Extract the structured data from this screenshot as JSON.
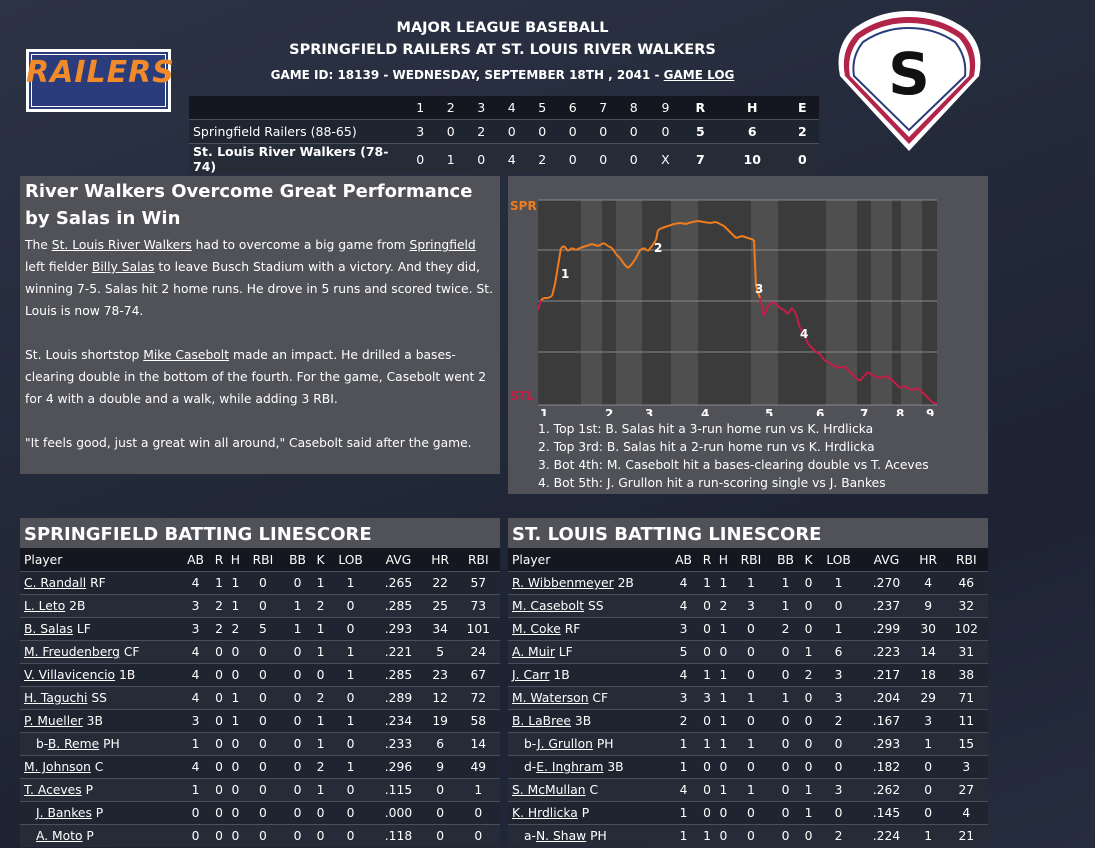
{
  "header": {
    "league": "MAJOR LEAGUE BASEBALL",
    "matchup": "SPRINGFIELD RAILERS AT ST. LOUIS RIVER WALKERS",
    "game_info": "GAME ID: 18139 - WEDNESDAY, SEPTEMBER 18TH , 2041 - ",
    "game_log_link": "GAME LOG"
  },
  "logos": {
    "away_text": "RAILERS",
    "home_text": "S",
    "away_color": "#f08a2a",
    "home_color": "#b3244a"
  },
  "linescore": {
    "headers": [
      "",
      "1",
      "2",
      "3",
      "4",
      "5",
      "6",
      "7",
      "8",
      "9",
      "R",
      "H",
      "E"
    ],
    "rows": [
      {
        "team": "Springfield Railers (88-65)",
        "innings": [
          "3",
          "0",
          "2",
          "0",
          "0",
          "0",
          "0",
          "0",
          "0"
        ],
        "R": "5",
        "H": "6",
        "E": "2"
      },
      {
        "team": "St. Louis River Walkers (78-74)",
        "innings": [
          "0",
          "1",
          "0",
          "4",
          "2",
          "0",
          "0",
          "0",
          "X"
        ],
        "R": "7",
        "H": "10",
        "E": "0"
      }
    ]
  },
  "story": {
    "title": "River Walkers Overcome Great Performance by Salas in Win",
    "p1": {
      "a": "The ",
      "l1": "St. Louis River Walkers",
      "b": " had to overcome a big game from ",
      "l2": "Springfield",
      "c": " left fielder ",
      "l3": "Billy Salas",
      "d": " to leave Busch Stadium with a victory. And they did, winning 7-5. Salas hit 2 home runs. He drove in 5 runs and scored twice. St. Louis is now 78-74."
    },
    "p2": {
      "a": "St. Louis shortstop ",
      "l1": "Mike Casebolt",
      "b": " made an impact. He drilled a bases-clearing double in the bottom of the fourth. For the game, Casebolt went 2 for 4 with a double and a walk, while adding 3 RBI."
    },
    "p3": "\"It feels good, just a great win all around,\" Casebolt said after the game."
  },
  "win_prob": {
    "top_label": "SPR",
    "bottom_label": "STL",
    "innings": [
      "1",
      "2",
      "3",
      "4",
      "5",
      "6",
      "7",
      "8",
      "9"
    ],
    "markers": [
      "1",
      "2",
      "3",
      "4"
    ],
    "notes": [
      "1. Top 1st: B. Salas hit a 3-run home run vs K. Hrdlicka",
      "2. Top 3rd: B. Salas hit a 2-run home run vs K. Hrdlicka",
      "3. Bot 4th: M. Casebolt hit a bases-clearing double vs T. Aceves",
      "4. Bot 5th: J. Grullon hit a run-scoring single vs J. Bankes"
    ],
    "colors": {
      "spr": "#f07c1c",
      "stl": "#c21e48"
    }
  },
  "batting": {
    "headers": [
      "Player",
      "AB",
      "R",
      "H",
      "RBI",
      "BB",
      "K",
      "LOB",
      "AVG",
      "HR",
      "RBI"
    ],
    "spr": {
      "title": "SPRINGFIELD BATTING LINESCORE",
      "rows": [
        {
          "pre": "",
          "name": "C. Randall",
          "pos": " RF",
          "s": [
            "4",
            "1",
            "1",
            "0",
            "0",
            "1",
            "1",
            ".265",
            "22",
            "57"
          ]
        },
        {
          "pre": "",
          "name": "L. Leto",
          "pos": " 2B",
          "s": [
            "3",
            "2",
            "1",
            "0",
            "1",
            "2",
            "0",
            ".285",
            "25",
            "73"
          ]
        },
        {
          "pre": "",
          "name": "B. Salas",
          "pos": " LF",
          "s": [
            "3",
            "2",
            "2",
            "5",
            "1",
            "1",
            "0",
            ".293",
            "34",
            "101"
          ]
        },
        {
          "pre": "",
          "name": "M. Freudenberg",
          "pos": " CF",
          "s": [
            "4",
            "0",
            "0",
            "0",
            "0",
            "1",
            "1",
            ".221",
            "5",
            "24"
          ]
        },
        {
          "pre": "",
          "name": "V. Villavicencio",
          "pos": " 1B",
          "s": [
            "4",
            "0",
            "0",
            "0",
            "0",
            "0",
            "1",
            ".285",
            "23",
            "67"
          ]
        },
        {
          "pre": "",
          "name": "H. Taguchi",
          "pos": " SS",
          "s": [
            "4",
            "0",
            "1",
            "0",
            "0",
            "2",
            "0",
            ".289",
            "12",
            "72"
          ]
        },
        {
          "pre": "",
          "name": "P. Mueller",
          "pos": " 3B",
          "s": [
            "3",
            "0",
            "1",
            "0",
            "0",
            "1",
            "1",
            ".234",
            "19",
            "58"
          ]
        },
        {
          "pre": "b-",
          "name": "B. Reme",
          "pos": " PH",
          "s": [
            "1",
            "0",
            "0",
            "0",
            "0",
            "1",
            "0",
            ".233",
            "6",
            "14"
          ]
        },
        {
          "pre": "",
          "name": "M. Johnson",
          "pos": " C",
          "s": [
            "4",
            "0",
            "0",
            "0",
            "0",
            "2",
            "1",
            ".296",
            "9",
            "49"
          ]
        },
        {
          "pre": "",
          "name": "T. Aceves",
          "pos": " P",
          "s": [
            "1",
            "0",
            "0",
            "0",
            "0",
            "1",
            "0",
            ".115",
            "0",
            "1"
          ]
        },
        {
          "pre": " ",
          "name": "J. Bankes",
          "pos": " P",
          "s": [
            "0",
            "0",
            "0",
            "0",
            "0",
            "0",
            "0",
            ".000",
            "0",
            "0"
          ]
        },
        {
          "pre": " ",
          "name": "A. Moto",
          "pos": " P",
          "s": [
            "0",
            "0",
            "0",
            "0",
            "0",
            "0",
            "0",
            ".118",
            "0",
            "0"
          ]
        }
      ]
    },
    "stl": {
      "title": "ST. LOUIS BATTING LINESCORE",
      "rows": [
        {
          "pre": "",
          "name": "R. Wibbenmeyer",
          "pos": " 2B",
          "s": [
            "4",
            "1",
            "1",
            "1",
            "1",
            "0",
            "1",
            ".270",
            "4",
            "46"
          ]
        },
        {
          "pre": "",
          "name": "M. Casebolt",
          "pos": " SS",
          "s": [
            "4",
            "0",
            "2",
            "3",
            "1",
            "0",
            "0",
            ".237",
            "9",
            "32"
          ]
        },
        {
          "pre": "",
          "name": "M. Coke",
          "pos": " RF",
          "s": [
            "3",
            "0",
            "1",
            "0",
            "2",
            "0",
            "1",
            ".299",
            "30",
            "102"
          ]
        },
        {
          "pre": "",
          "name": "A. Muir",
          "pos": " LF",
          "s": [
            "5",
            "0",
            "0",
            "0",
            "0",
            "1",
            "6",
            ".223",
            "14",
            "31"
          ]
        },
        {
          "pre": "",
          "name": "J. Carr",
          "pos": " 1B",
          "s": [
            "4",
            "1",
            "1",
            "0",
            "0",
            "2",
            "3",
            ".217",
            "18",
            "38"
          ]
        },
        {
          "pre": "",
          "name": "M. Waterson",
          "pos": " CF",
          "s": [
            "3",
            "3",
            "1",
            "1",
            "1",
            "0",
            "3",
            ".204",
            "29",
            "71"
          ]
        },
        {
          "pre": "",
          "name": "B. LaBree",
          "pos": " 3B",
          "s": [
            "2",
            "0",
            "1",
            "0",
            "0",
            "0",
            "2",
            ".167",
            "3",
            "11"
          ]
        },
        {
          "pre": "b-",
          "name": "J. Grullon",
          "pos": " PH",
          "s": [
            "1",
            "1",
            "1",
            "1",
            "0",
            "0",
            "0",
            ".293",
            "1",
            "15"
          ]
        },
        {
          "pre": "d-",
          "name": "E. Inghram",
          "pos": " 3B",
          "s": [
            "1",
            "0",
            "0",
            "0",
            "0",
            "0",
            "0",
            ".182",
            "0",
            "3"
          ]
        },
        {
          "pre": "",
          "name": "S. McMullan",
          "pos": " C",
          "s": [
            "4",
            "0",
            "1",
            "1",
            "0",
            "1",
            "3",
            ".262",
            "0",
            "27"
          ]
        },
        {
          "pre": "",
          "name": "K. Hrdlicka",
          "pos": " P",
          "s": [
            "1",
            "0",
            "0",
            "0",
            "0",
            "1",
            "0",
            ".145",
            "0",
            "4"
          ]
        },
        {
          "pre": "a-",
          "name": "N. Shaw",
          "pos": " PH",
          "s": [
            "1",
            "1",
            "0",
            "0",
            "0",
            "0",
            "2",
            ".224",
            "1",
            "21"
          ]
        }
      ]
    }
  }
}
